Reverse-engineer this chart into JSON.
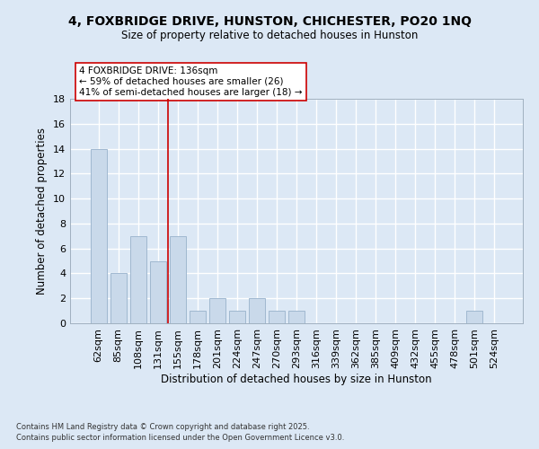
{
  "title": "4, FOXBRIDGE DRIVE, HUNSTON, CHICHESTER, PO20 1NQ",
  "subtitle": "Size of property relative to detached houses in Hunston",
  "xlabel": "Distribution of detached houses by size in Hunston",
  "ylabel": "Number of detached properties",
  "footnote1": "Contains HM Land Registry data © Crown copyright and database right 2025.",
  "footnote2": "Contains public sector information licensed under the Open Government Licence v3.0.",
  "categories": [
    "62sqm",
    "85sqm",
    "108sqm",
    "131sqm",
    "155sqm",
    "178sqm",
    "201sqm",
    "224sqm",
    "247sqm",
    "270sqm",
    "293sqm",
    "316sqm",
    "339sqm",
    "362sqm",
    "385sqm",
    "409sqm",
    "432sqm",
    "455sqm",
    "478sqm",
    "501sqm",
    "524sqm"
  ],
  "values": [
    14,
    4,
    7,
    5,
    7,
    1,
    2,
    1,
    2,
    1,
    1,
    0,
    0,
    0,
    0,
    0,
    0,
    0,
    0,
    1,
    0
  ],
  "bar_color": "#c9d9ea",
  "bar_edge_color": "#a0b8d0",
  "vline_x": 3.5,
  "vline_color": "#cc0000",
  "annotation_text": "4 FOXBRIDGE DRIVE: 136sqm\n← 59% of detached houses are smaller (26)\n41% of semi-detached houses are larger (18) →",
  "annotation_box_color": "#ffffff",
  "annotation_box_edge": "#cc0000",
  "bg_color": "#dce8f5",
  "plot_bg_color": "#dce8f5",
  "grid_color": "#ffffff",
  "ylim": [
    0,
    18
  ],
  "yticks": [
    0,
    2,
    4,
    6,
    8,
    10,
    12,
    14,
    16,
    18
  ]
}
